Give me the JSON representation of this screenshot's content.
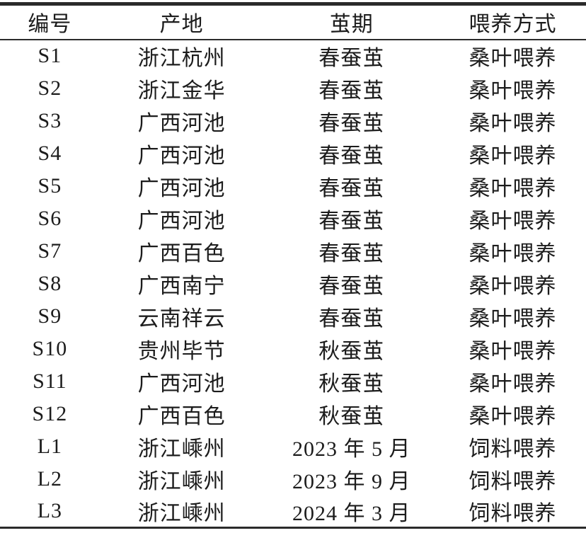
{
  "table": {
    "headers": [
      "编号",
      "产地",
      "茧期",
      "喂养方式"
    ],
    "rows": [
      [
        "S1",
        "浙江杭州",
        "春蚕茧",
        "桑叶喂养"
      ],
      [
        "S2",
        "浙江金华",
        "春蚕茧",
        "桑叶喂养"
      ],
      [
        "S3",
        "广西河池",
        "春蚕茧",
        "桑叶喂养"
      ],
      [
        "S4",
        "广西河池",
        "春蚕茧",
        "桑叶喂养"
      ],
      [
        "S5",
        "广西河池",
        "春蚕茧",
        "桑叶喂养"
      ],
      [
        "S6",
        "广西河池",
        "春蚕茧",
        "桑叶喂养"
      ],
      [
        "S7",
        "广西百色",
        "春蚕茧",
        "桑叶喂养"
      ],
      [
        "S8",
        "广西南宁",
        "春蚕茧",
        "桑叶喂养"
      ],
      [
        "S9",
        "云南祥云",
        "春蚕茧",
        "桑叶喂养"
      ],
      [
        "S10",
        "贵州毕节",
        "秋蚕茧",
        "桑叶喂养"
      ],
      [
        "S11",
        "广西河池",
        "秋蚕茧",
        "桑叶喂养"
      ],
      [
        "S12",
        "广西百色",
        "秋蚕茧",
        "桑叶喂养"
      ],
      [
        "L1",
        "浙江嵊州",
        "2023 年 5 月",
        "饲料喂养"
      ],
      [
        "L2",
        "浙江嵊州",
        "2023 年 9 月",
        "饲料喂养"
      ],
      [
        "L3",
        "浙江嵊州",
        "2024 年 3 月",
        "饲料喂养"
      ]
    ],
    "column_names": [
      "cell-id",
      "cell-origin",
      "cell-cocoon-period",
      "cell-feeding-method"
    ]
  },
  "colors": {
    "border": "#2b2b2b",
    "text": "#1c1c1c",
    "background": "#ffffff"
  }
}
